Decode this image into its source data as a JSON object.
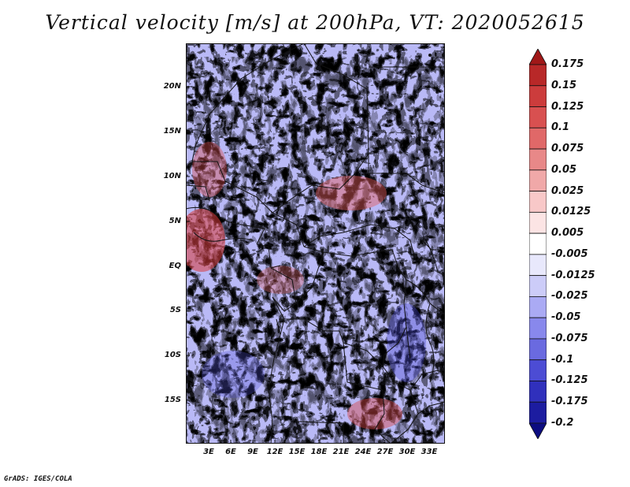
{
  "title": "Vertical velocity [m/s] at 200hPa, VT: 2020052615",
  "credit": "GrADS: IGES/COLA",
  "map": {
    "lat_ticks": [
      "20N",
      "15N",
      "10N",
      "5N",
      "EQ",
      "5S",
      "10S",
      "15S"
    ],
    "lon_ticks": [
      "3E",
      "6E",
      "9E",
      "12E",
      "15E",
      "18E",
      "21E",
      "24E",
      "27E",
      "30E",
      "33E"
    ],
    "field": "vertical velocity",
    "level": "200hPa",
    "valid_time": "2020052615"
  },
  "colorbar": {
    "labels": [
      "0.175",
      "0.15",
      "0.125",
      "0.1",
      "0.075",
      "0.05",
      "0.025",
      "0.0125",
      "0.005",
      "-0.005",
      "-0.0125",
      "-0.025",
      "-0.05",
      "-0.075",
      "-0.1",
      "-0.125",
      "-0.175",
      "-0.2"
    ],
    "colors": [
      "#a01818",
      "#b82828",
      "#cc3c3c",
      "#d85050",
      "#e06868",
      "#e88888",
      "#f0a8a8",
      "#f8c8c8",
      "#fce4e4",
      "#ffffff",
      "#e8e8fc",
      "#ccccf8",
      "#aaaaf4",
      "#8888ec",
      "#6a6ae0",
      "#4c4cd4",
      "#3030bc",
      "#1c1ca0",
      "#0c0c80"
    ]
  }
}
